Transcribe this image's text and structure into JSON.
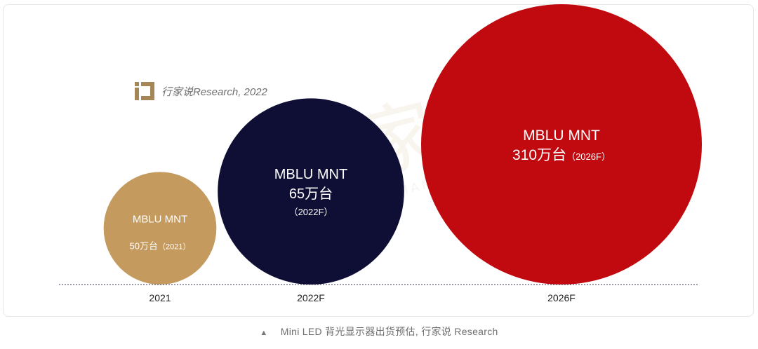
{
  "source_label": "行家说Research, 2022",
  "watermark": {
    "text": "行家说",
    "url": "HANGJIANET.COM"
  },
  "caption": "Mini LED 背光显示器出货预估, 行家说 Research",
  "colors": {
    "c2021": "#c49a5e",
    "c2022": "#0f0f36",
    "c2026": "#c00a0f"
  },
  "chart_data": {
    "type": "bubble",
    "title": "",
    "categories": [
      "2021",
      "2022F",
      "2026F"
    ],
    "values": [
      50,
      65,
      310
    ],
    "unit": "万台",
    "bubbles": [
      {
        "category": "2021",
        "line1": "MBLU MNT",
        "line2": "50万台",
        "line3": "（2021）",
        "value": 50,
        "color": "#c49a5e"
      },
      {
        "category": "2022F",
        "line1": "MBLU MNT",
        "line2": "65万台",
        "line3": "（2022F）",
        "value": 65,
        "color": "#0f0f36"
      },
      {
        "category": "2026F",
        "line1": "MBLU MNT",
        "line2": "310万台",
        "line3": "（2026F）",
        "value": 310,
        "color": "#c00a0f"
      }
    ]
  }
}
